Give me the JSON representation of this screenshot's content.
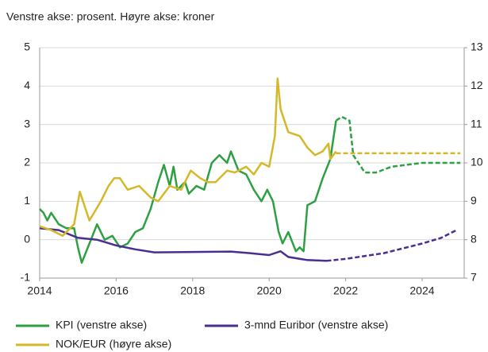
{
  "chart_data": {
    "type": "line",
    "subtitle": "Venstre akse: prosent.  Høyre akse: kroner",
    "xlim": [
      2014,
      2025.1
    ],
    "xticks": [
      2014,
      2016,
      2018,
      2020,
      2022,
      2024
    ],
    "ylim": [
      -1,
      5
    ],
    "yticks": [
      -1,
      0,
      1,
      2,
      3,
      4,
      5
    ],
    "y2lim": [
      7,
      13
    ],
    "y2ticks": [
      7,
      8,
      9,
      10,
      11,
      12,
      13
    ],
    "grid": true,
    "series": [
      {
        "name": "KPI (venstre akse)",
        "color": "#2ea043",
        "x": [
          2014.0,
          2014.1,
          2014.2,
          2014.3,
          2014.5,
          2014.7,
          2014.9,
          2015.0,
          2015.1,
          2015.3,
          2015.5,
          2015.7,
          2015.9,
          2016.1,
          2016.3,
          2016.5,
          2016.7,
          2016.9,
          2017.1,
          2017.25,
          2017.4,
          2017.5,
          2017.6,
          2017.8,
          2017.9,
          2018.1,
          2018.3,
          2018.5,
          2018.7,
          2018.9,
          2019.0,
          2019.2,
          2019.4,
          2019.6,
          2019.8,
          2019.95,
          2020.1,
          2020.25,
          2020.35,
          2020.5,
          2020.7,
          2020.8,
          2020.9,
          2021.0,
          2021.2,
          2021.4,
          2021.6,
          2021.75
        ],
        "values": [
          0.8,
          0.7,
          0.5,
          0.7,
          0.4,
          0.3,
          0.3,
          -0.2,
          -0.6,
          -0.1,
          0.4,
          0.0,
          0.1,
          -0.2,
          -0.1,
          0.2,
          0.3,
          0.8,
          1.5,
          1.95,
          1.4,
          1.9,
          1.3,
          1.5,
          1.2,
          1.4,
          1.3,
          2.0,
          2.2,
          2.0,
          2.3,
          1.8,
          1.7,
          1.3,
          1.0,
          1.3,
          1.0,
          0.2,
          -0.1,
          0.2,
          -0.3,
          -0.2,
          -0.3,
          0.9,
          1.0,
          1.6,
          2.1,
          3.1
        ],
        "projection": {
          "x": [
            2021.75,
            2021.9,
            2022.1,
            2022.2,
            2022.5,
            2022.8,
            2023.2,
            2024.0,
            2025.0
          ],
          "values": [
            3.1,
            3.2,
            3.1,
            2.2,
            1.75,
            1.75,
            1.9,
            2.0,
            2.0
          ]
        }
      },
      {
        "name": "3-mnd Euribor (venstre akse)",
        "color": "#4b2e91",
        "x": [
          2014.0,
          2014.5,
          2015.0,
          2015.5,
          2016.0,
          2016.5,
          2017.0,
          2018.0,
          2019.0,
          2019.5,
          2020.0,
          2020.3,
          2020.5,
          2021.0,
          2021.5
        ],
        "values": [
          0.3,
          0.25,
          0.05,
          0.0,
          -0.15,
          -0.25,
          -0.33,
          -0.32,
          -0.31,
          -0.35,
          -0.4,
          -0.3,
          -0.45,
          -0.53,
          -0.55
        ],
        "projection": {
          "x": [
            2021.5,
            2022.0,
            2023.0,
            2024.0,
            2024.5,
            2024.9
          ],
          "values": [
            -0.55,
            -0.5,
            -0.35,
            -0.1,
            0.05,
            0.25
          ]
        }
      },
      {
        "name": "NOK/EUR (høyre akse)",
        "color": "#d4b82a",
        "axis": "y2",
        "x": [
          2014.0,
          2014.3,
          2014.6,
          2014.9,
          2015.05,
          2015.3,
          2015.6,
          2015.8,
          2015.95,
          2016.1,
          2016.3,
          2016.6,
          2016.9,
          2017.1,
          2017.4,
          2017.7,
          2017.95,
          2018.2,
          2018.4,
          2018.6,
          2018.9,
          2019.1,
          2019.4,
          2019.6,
          2019.8,
          2020.0,
          2020.15,
          2020.22,
          2020.3,
          2020.5,
          2020.8,
          2021.0,
          2021.2,
          2021.4,
          2021.55,
          2021.6,
          2021.75
        ],
        "values": [
          8.35,
          8.25,
          8.1,
          8.4,
          9.25,
          8.5,
          9.0,
          9.4,
          9.6,
          9.6,
          9.3,
          9.4,
          9.1,
          9.0,
          9.4,
          9.3,
          9.8,
          9.6,
          9.5,
          9.5,
          9.8,
          9.75,
          9.9,
          9.7,
          10.0,
          9.9,
          10.7,
          12.2,
          11.4,
          10.8,
          10.7,
          10.4,
          10.2,
          10.3,
          10.5,
          10.1,
          10.3
        ],
        "projection": {
          "x": [
            2021.75,
            2025.0
          ],
          "values": [
            10.25,
            10.25
          ]
        }
      }
    ]
  }
}
